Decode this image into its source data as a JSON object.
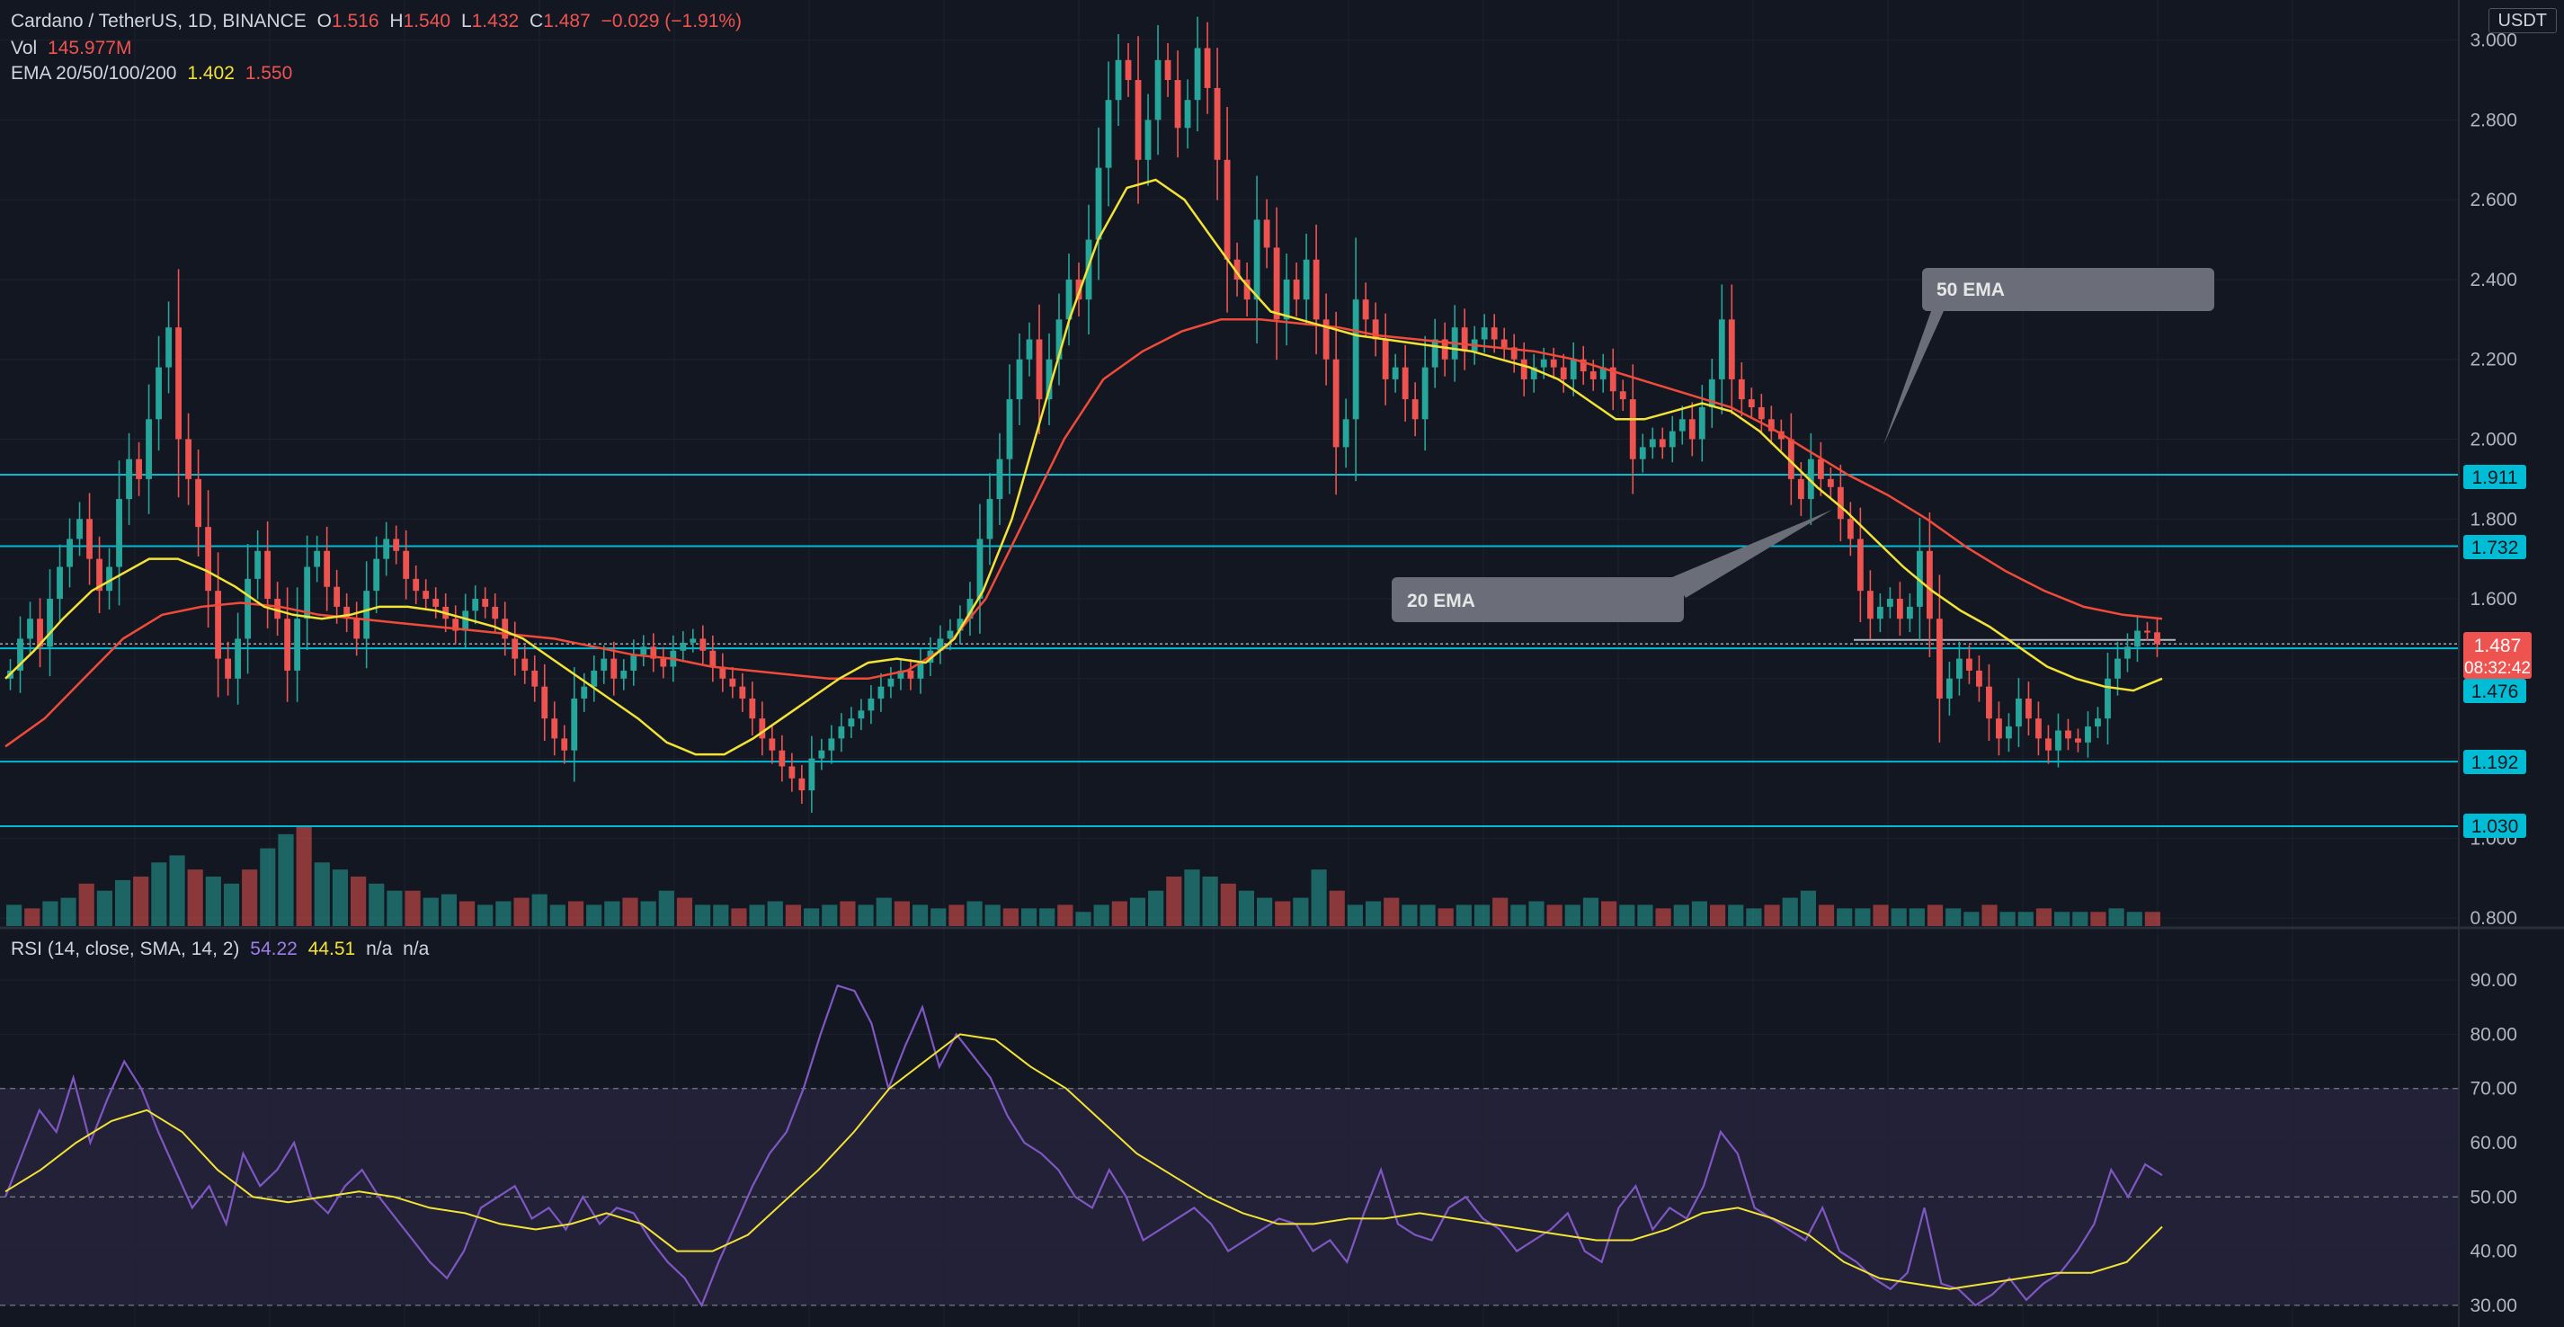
{
  "header": {
    "symbol": "Cardano / TetherUS, 1D, BINANCE",
    "open_label": "O",
    "open": "1.516",
    "high_label": "H",
    "high": "1.540",
    "low_label": "L",
    "low": "1.432",
    "close_label": "C",
    "close": "1.487",
    "change": "−0.029 (−1.91%)",
    "vol_label": "Vol",
    "vol": "145.977M",
    "ema_label": "EMA 20/50/100/200",
    "ema20": "1.402",
    "ema50": "1.550"
  },
  "currency_tag": "USDT",
  "rsi_header": {
    "label": "RSI (14, close, SMA, 14, 2)",
    "rsi": "54.22",
    "sma": "44.51",
    "na1": "n/a",
    "na2": "n/a"
  },
  "annotations": {
    "ema50": "50 EMA",
    "ema20": "20 EMA"
  },
  "price_tags": {
    "current": "1.487",
    "countdown": "08:32:42",
    "l1911": "1.911",
    "l1732": "1.732",
    "l1476": "1.476",
    "l1192": "1.192",
    "l1030": "1.030"
  },
  "colors": {
    "up": "#26a69a",
    "down": "#ef5350",
    "ema20": "#f2e335",
    "ema50": "#f04b3a",
    "support": "#00bcd4",
    "rsi": "#7e57c2",
    "rsi_band": "#2a2540"
  },
  "chart_data": [
    {
      "type": "candlestick",
      "title": "Cardano / TetherUS, 1D, BINANCE",
      "y_axis_ticks": [
        "3.000",
        "2.800",
        "2.600",
        "2.400",
        "2.200",
        "2.000",
        "1.800",
        "1.600",
        "1.400",
        "1.200",
        "1.000",
        "0.800"
      ],
      "ylim": [
        0.78,
        3.06
      ],
      "horizontal_levels": [
        1.911,
        1.732,
        1.476,
        1.192,
        1.03
      ],
      "current_price": 1.487,
      "series": [
        {
          "name": "close",
          "values": [
            1.42,
            1.5,
            1.55,
            1.48,
            1.6,
            1.68,
            1.75,
            1.8,
            1.7,
            1.62,
            1.68,
            1.85,
            1.95,
            1.9,
            2.05,
            2.18,
            2.28,
            2.0,
            1.9,
            1.78,
            1.62,
            1.45,
            1.4,
            1.5,
            1.65,
            1.72,
            1.6,
            1.55,
            1.42,
            1.55,
            1.68,
            1.72,
            1.63,
            1.58,
            1.55,
            1.5,
            1.62,
            1.7,
            1.75,
            1.72,
            1.65,
            1.62,
            1.6,
            1.58,
            1.55,
            1.52,
            1.57,
            1.6,
            1.58,
            1.55,
            1.5,
            1.45,
            1.42,
            1.38,
            1.3,
            1.25,
            1.22,
            1.35,
            1.38,
            1.42,
            1.45,
            1.4,
            1.42,
            1.46,
            1.48,
            1.45,
            1.43,
            1.47,
            1.49,
            1.5,
            1.47,
            1.43,
            1.4,
            1.38,
            1.35,
            1.3,
            1.25,
            1.22,
            1.18,
            1.15,
            1.12,
            1.2,
            1.22,
            1.25,
            1.28,
            1.3,
            1.32,
            1.35,
            1.38,
            1.4,
            1.42,
            1.4,
            1.44,
            1.47,
            1.5,
            1.52,
            1.55,
            1.6,
            1.75,
            1.85,
            1.95,
            2.1,
            2.2,
            2.25,
            2.1,
            2.2,
            2.3,
            2.4,
            2.35,
            2.5,
            2.68,
            2.85,
            2.95,
            2.9,
            2.7,
            2.8,
            2.95,
            2.9,
            2.78,
            2.85,
            2.98,
            2.88,
            2.7,
            2.45,
            2.4,
            2.35,
            2.55,
            2.48,
            2.3,
            2.4,
            2.35,
            2.45,
            2.3,
            2.2,
            1.98,
            2.05,
            2.35,
            2.3,
            2.25,
            2.15,
            2.18,
            2.1,
            2.05,
            2.18,
            2.25,
            2.2,
            2.28,
            2.22,
            2.25,
            2.28,
            2.25,
            2.23,
            2.2,
            2.15,
            2.18,
            2.2,
            2.18,
            2.15,
            2.2,
            2.17,
            2.15,
            2.18,
            2.12,
            2.1,
            1.95,
            1.98,
            2.0,
            1.98,
            2.02,
            2.05,
            2.0,
            2.08,
            2.15,
            2.3,
            2.15,
            2.1,
            2.08,
            2.05,
            2.02,
            2.0,
            1.9,
            1.85,
            1.95,
            1.9,
            1.88,
            1.8,
            1.75,
            1.62,
            1.55,
            1.58,
            1.6,
            1.55,
            1.58,
            1.72,
            1.55,
            1.35,
            1.4,
            1.45,
            1.42,
            1.38,
            1.3,
            1.25,
            1.28,
            1.35,
            1.3,
            1.25,
            1.22,
            1.27,
            1.25,
            1.24,
            1.28,
            1.3,
            1.4,
            1.45,
            1.48,
            1.52,
            1.516,
            1.487
          ]
        },
        {
          "name": "EMA 20",
          "values": [
            1.4,
            1.47,
            1.55,
            1.62,
            1.66,
            1.7,
            1.7,
            1.67,
            1.63,
            1.58,
            1.56,
            1.55,
            1.56,
            1.58,
            1.58,
            1.57,
            1.55,
            1.53,
            1.5,
            1.45,
            1.4,
            1.35,
            1.3,
            1.24,
            1.21,
            1.21,
            1.25,
            1.3,
            1.35,
            1.4,
            1.44,
            1.45,
            1.44,
            1.5,
            1.62,
            1.8,
            2.05,
            2.3,
            2.5,
            2.63,
            2.65,
            2.6,
            2.5,
            2.4,
            2.32,
            2.3,
            2.28,
            2.26,
            2.25,
            2.24,
            2.23,
            2.22,
            2.2,
            2.18,
            2.15,
            2.1,
            2.05,
            2.05,
            2.07,
            2.09,
            2.07,
            2.02,
            1.95,
            1.88,
            1.82,
            1.75,
            1.68,
            1.62,
            1.57,
            1.53,
            1.48,
            1.43,
            1.4,
            1.38,
            1.37,
            1.4
          ]
        },
        {
          "name": "EMA 50",
          "values": [
            1.23,
            1.3,
            1.4,
            1.5,
            1.56,
            1.58,
            1.59,
            1.58,
            1.56,
            1.55,
            1.54,
            1.53,
            1.52,
            1.51,
            1.5,
            1.48,
            1.46,
            1.45,
            1.43,
            1.42,
            1.41,
            1.4,
            1.4,
            1.42,
            1.48,
            1.6,
            1.8,
            2.0,
            2.15,
            2.22,
            2.27,
            2.3,
            2.3,
            2.29,
            2.28,
            2.26,
            2.25,
            2.24,
            2.23,
            2.22,
            2.2,
            2.17,
            2.14,
            2.11,
            2.08,
            2.03,
            1.97,
            1.91,
            1.86,
            1.8,
            1.73,
            1.67,
            1.62,
            1.58,
            1.56,
            1.55
          ]
        }
      ]
    },
    {
      "type": "bar",
      "title": "Vol",
      "values": [
        3,
        2.5,
        3.5,
        4,
        6,
        5,
        6.5,
        7,
        9,
        10,
        8,
        7,
        6,
        8,
        11,
        13,
        14,
        9,
        8,
        7,
        6,
        5,
        5,
        4,
        4.5,
        3.5,
        3,
        3.5,
        4,
        4.5,
        3,
        3.5,
        3,
        3.5,
        4,
        3.5,
        5,
        4,
        3,
        3,
        2.5,
        3,
        3.5,
        3,
        2.5,
        3,
        3.5,
        3,
        4,
        3.5,
        3,
        2.5,
        3,
        3.5,
        3,
        2.5,
        2.5,
        2.5,
        3,
        2,
        3,
        3.5,
        4,
        5,
        7,
        8,
        7,
        6,
        5,
        4,
        3.5,
        4,
        8,
        5,
        3,
        3.5,
        4,
        3,
        3,
        2.5,
        3,
        3,
        4,
        3,
        3.5,
        3,
        3,
        4,
        3.5,
        3,
        3,
        2.5,
        3,
        3.5,
        3,
        3,
        2.5,
        3,
        4,
        5,
        3,
        2.5,
        2.5,
        3,
        2.5,
        2.5,
        3,
        2.5,
        2,
        3,
        2,
        2,
        2.5,
        2,
        2,
        2,
        2.5,
        2,
        2
      ]
    },
    {
      "type": "line",
      "title": "RSI (14, close, SMA, 14, 2)",
      "y_axis_ticks": [
        "90.00",
        "80.00",
        "70.00",
        "60.00",
        "50.00",
        "40.00",
        "30.00"
      ],
      "ylim": [
        26,
        95
      ],
      "band": [
        30,
        70
      ],
      "midline": 50,
      "series": [
        {
          "name": "RSI",
          "values": [
            50,
            58,
            66,
            62,
            72,
            60,
            68,
            75,
            70,
            62,
            55,
            48,
            52,
            45,
            58,
            52,
            55,
            60,
            50,
            47,
            52,
            55,
            50,
            46,
            42,
            38,
            35,
            40,
            48,
            50,
            52,
            46,
            48,
            44,
            50,
            45,
            48,
            47,
            42,
            38,
            35,
            30,
            38,
            45,
            52,
            58,
            62,
            70,
            80,
            89,
            88,
            82,
            70,
            78,
            85,
            74,
            80,
            76,
            72,
            65,
            60,
            58,
            55,
            50,
            48,
            55,
            50,
            42,
            44,
            46,
            48,
            45,
            40,
            42,
            44,
            46,
            45,
            40,
            42,
            38,
            47,
            55,
            45,
            43,
            42,
            48,
            50,
            46,
            44,
            40,
            42,
            44,
            47,
            40,
            38,
            48,
            52,
            44,
            48,
            46,
            52,
            62,
            58,
            48,
            46,
            44,
            42,
            48,
            40,
            38,
            35,
            33,
            36,
            48,
            34,
            33,
            30,
            32,
            35,
            31,
            34,
            36,
            40,
            45,
            55,
            50,
            56,
            54
          ]
        },
        {
          "name": "RSI-based MA",
          "values": [
            51,
            55,
            60,
            64,
            66,
            62,
            55,
            50,
            49,
            50,
            51,
            50,
            48,
            47,
            45,
            44,
            45,
            47,
            45,
            40,
            40,
            43,
            49,
            55,
            62,
            70,
            75,
            80,
            79,
            74,
            70,
            64,
            58,
            54,
            50,
            47,
            45,
            45,
            46,
            46,
            47,
            46,
            45,
            44,
            43,
            42,
            42,
            44,
            47,
            48,
            46,
            43,
            38,
            35,
            34,
            33,
            34,
            35,
            36,
            36,
            38,
            44.5
          ]
        }
      ]
    }
  ]
}
